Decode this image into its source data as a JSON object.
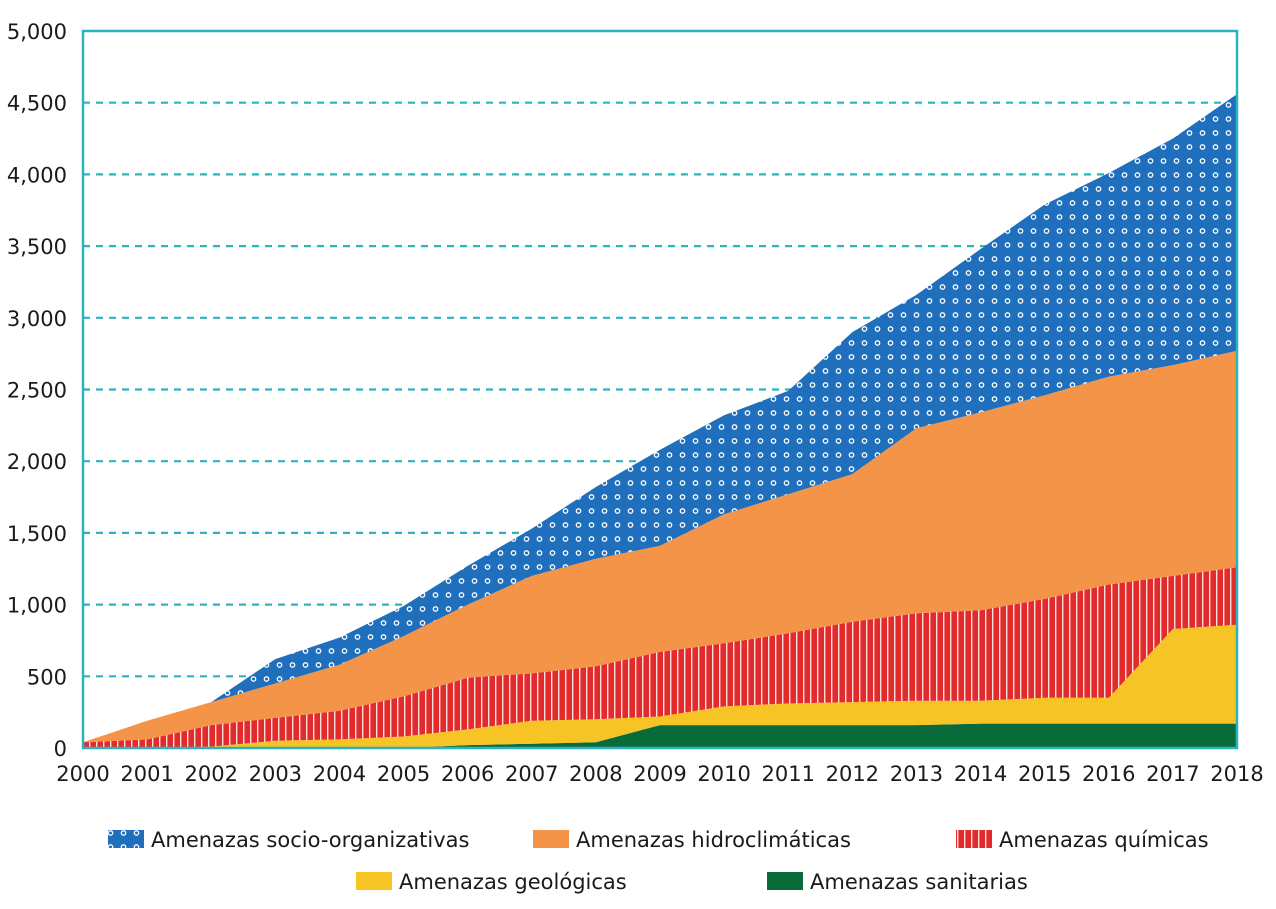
{
  "chart_data": {
    "type": "area",
    "stacked": true,
    "title": "",
    "xlabel": "",
    "ylabel": "",
    "ylim": [
      0,
      5000
    ],
    "yticks": [
      0,
      500,
      1000,
      1500,
      2000,
      2500,
      3000,
      3500,
      4000,
      4500,
      5000
    ],
    "ytick_labels": [
      "0",
      "500",
      "1,000",
      "1,500",
      "2,000",
      "2,500",
      "3,000",
      "3,500",
      "4,000",
      "4,500",
      "5,000"
    ],
    "x": [
      "2000",
      "2001",
      "2002",
      "2003",
      "2004",
      "2005",
      "2006",
      "2007",
      "2008",
      "2009",
      "2010",
      "2011",
      "2012",
      "2013",
      "2014",
      "2015",
      "2016",
      "2017",
      "2018"
    ],
    "grid": "horizontal dashed",
    "legend_position": "bottom",
    "series": [
      {
        "name": "Amenazas sanitarias",
        "color": "#0a6b3a",
        "values": [
          0,
          0,
          0,
          0,
          0,
          0,
          20,
          30,
          40,
          160,
          160,
          160,
          160,
          160,
          170,
          170,
          170,
          170,
          170
        ]
      },
      {
        "name": "Amenazas geológicas",
        "color": "#f7c425",
        "values": [
          0,
          0,
          10,
          50,
          60,
          80,
          110,
          160,
          160,
          60,
          130,
          150,
          160,
          170,
          160,
          180,
          180,
          660,
          690
        ]
      },
      {
        "name": "Amenazas químicas",
        "color": "#e32b2b",
        "values": [
          40,
          60,
          150,
          160,
          200,
          280,
          360,
          330,
          370,
          450,
          440,
          490,
          560,
          610,
          630,
          690,
          790,
          370,
          400
        ]
      },
      {
        "name": "Amenazas hidroclimáticas",
        "color": "#f39449",
        "values": [
          0,
          130,
          160,
          240,
          320,
          420,
          510,
          680,
          750,
          740,
          900,
          970,
          1030,
          1290,
          1380,
          1420,
          1450,
          1470,
          1510
        ]
      },
      {
        "name": "Amenazas socio-organizativas",
        "color": "#1f6fbd",
        "values": [
          0,
          0,
          0,
          170,
          190,
          210,
          270,
          330,
          500,
          670,
          690,
          720,
          990,
          930,
          1140,
          1330,
          1420,
          1580,
          1790
        ]
      }
    ],
    "legend": [
      {
        "label": "Amenazas socio-organizativas",
        "color": "#1f6fbd",
        "pattern": "dots"
      },
      {
        "label": "Amenazas hidroclimáticas",
        "color": "#f39449",
        "pattern": "solid"
      },
      {
        "label": "Amenazas químicas",
        "color": "#e32b2b",
        "pattern": "vertical-lines"
      },
      {
        "label": "Amenazas geológicas",
        "color": "#f7c425",
        "pattern": "solid"
      },
      {
        "label": "Amenazas sanitarias",
        "color": "#0a6b3a",
        "pattern": "solid"
      }
    ],
    "frame_color": "#2bb3c0",
    "grid_color": "#2bb3c0"
  }
}
